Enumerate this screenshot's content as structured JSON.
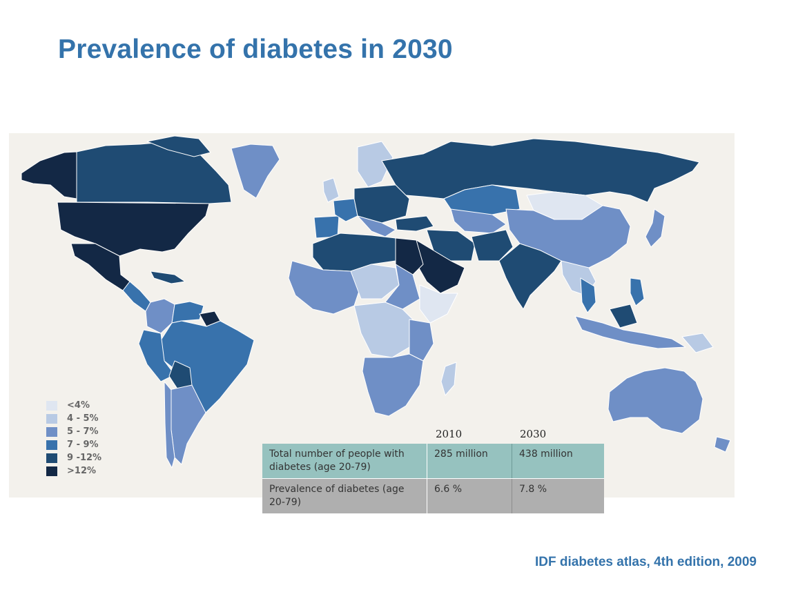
{
  "title": "Prevalence of diabetes in 2030",
  "source": "IDF diabetes atlas, 4th edition, 2009",
  "colors": {
    "lt4": "#dfe6f1",
    "4to5": "#b8cae4",
    "5to7": "#6f8fc6",
    "7to9": "#3872ac",
    "9to12": "#1f4b73",
    "gt12": "#132845",
    "ocean": "#f3f1ec"
  },
  "legend": [
    {
      "label": "<4%",
      "color": "#dfe6f1"
    },
    {
      "label": "4 - 5%",
      "color": "#b8cae4"
    },
    {
      "label": "5 - 7%",
      "color": "#6f8fc6"
    },
    {
      "label": "7 - 9%",
      "color": "#3872ac"
    },
    {
      "label": "9 -12%",
      "color": "#1f4b73"
    },
    {
      "label": ">12%",
      "color": "#132845"
    }
  ],
  "table": {
    "years": [
      "2010",
      "2030"
    ],
    "rows": [
      {
        "label": "Total number of people with diabetes (age 20-79)",
        "v2010": "285 million",
        "v2030": "438 million"
      },
      {
        "label": "Prevalence of diabetes (age 20-79)",
        "v2010": "6.6 %",
        "v2030": "7.8 %"
      }
    ]
  }
}
